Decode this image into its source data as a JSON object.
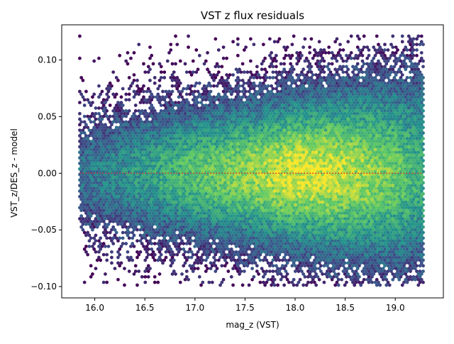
{
  "chart_data": {
    "type": "hexbin",
    "title": "VST z flux residuals",
    "xlabel": "mag_z (VST)",
    "ylabel": "VST_z/DES_z - model",
    "xlim": [
      15.67,
      19.48
    ],
    "ylim": [
      -0.11,
      0.131
    ],
    "xticks": [
      16.0,
      16.5,
      17.0,
      17.5,
      18.0,
      18.5,
      19.0
    ],
    "xtick_labels": [
      "16.0",
      "16.5",
      "17.0",
      "17.5",
      "18.0",
      "18.5",
      "19.0"
    ],
    "yticks": [
      -0.1,
      -0.05,
      0.0,
      0.05,
      0.1
    ],
    "ytick_labels": [
      "−0.10",
      "−0.05",
      "0.00",
      "0.05",
      "0.10"
    ],
    "data_extent": {
      "x": [
        15.85,
        19.28
      ],
      "y": [
        -0.1,
        0.121
      ]
    },
    "density_profile": [
      {
        "x": 15.85,
        "spread": 0.038,
        "peak": 0.35
      },
      {
        "x": 16.5,
        "spread": 0.04,
        "peak": 0.55
      },
      {
        "x": 17.0,
        "spread": 0.042,
        "peak": 0.7
      },
      {
        "x": 17.5,
        "spread": 0.044,
        "peak": 0.82
      },
      {
        "x": 18.0,
        "spread": 0.047,
        "peak": 0.95
      },
      {
        "x": 18.5,
        "spread": 0.052,
        "peak": 0.9
      },
      {
        "x": 19.0,
        "spread": 0.058,
        "peak": 0.75
      },
      {
        "x": 19.28,
        "spread": 0.062,
        "peak": 0.6
      }
    ],
    "colormap": [
      "#440154",
      "#3b528b",
      "#21918c",
      "#5ec962",
      "#fde725"
    ],
    "reference_line": {
      "y": 0.0,
      "color": "#d62728",
      "style": "dotted"
    },
    "grid": false
  }
}
